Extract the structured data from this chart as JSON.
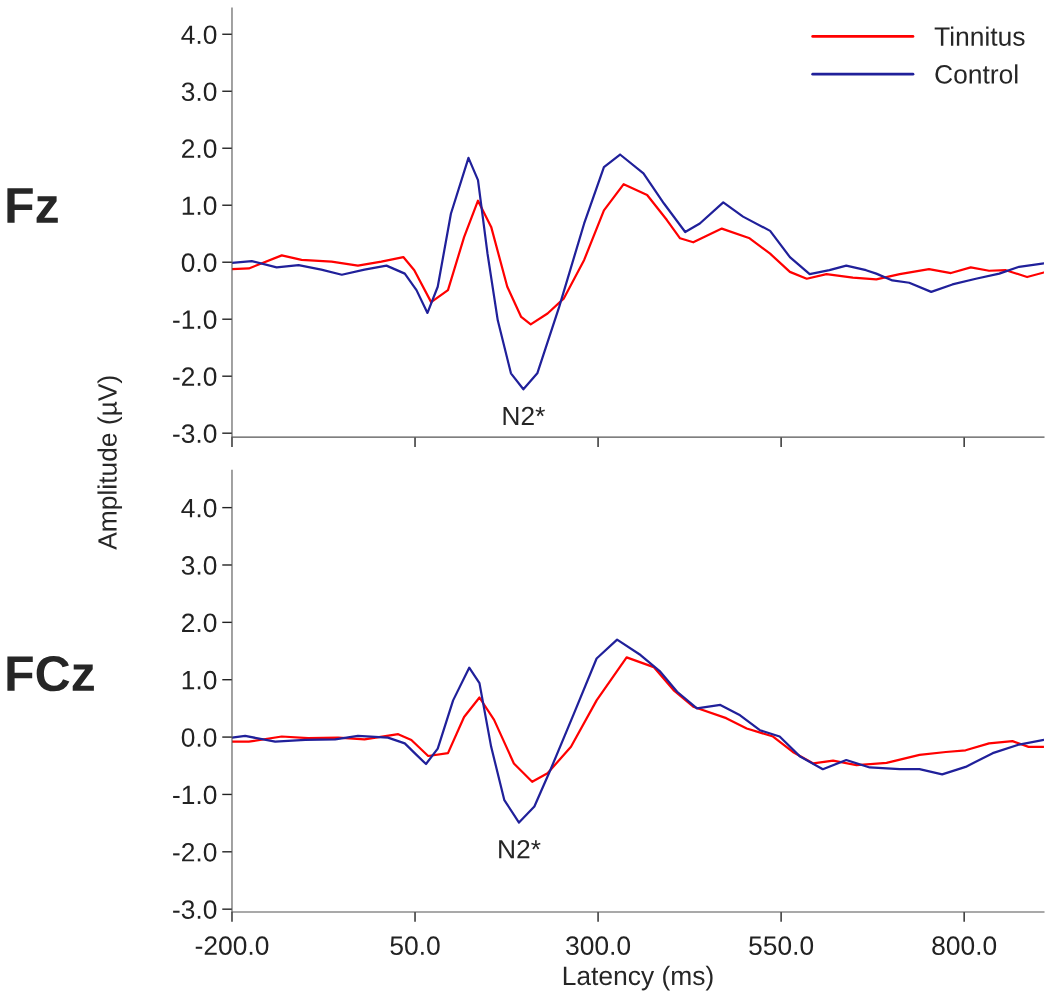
{
  "chart_data": [
    {
      "type": "line",
      "title": "Fz",
      "ylabel": "Amplitude (µV)",
      "xlim": [
        -200,
        909
      ],
      "ylim": [
        -3.07,
        4.46
      ],
      "xticks": [
        {
          "value": -200,
          "label": null
        },
        {
          "value": 50,
          "label": null
        },
        {
          "value": 300,
          "label": null
        },
        {
          "value": 550,
          "label": null
        },
        {
          "value": 800,
          "label": null
        }
      ],
      "yticks": [
        {
          "value": -3,
          "label": "-3.0"
        },
        {
          "value": -2,
          "label": "-2.0"
        },
        {
          "value": -1,
          "label": "-1.0"
        },
        {
          "value": 0,
          "label": "0.0"
        },
        {
          "value": 1,
          "label": "1.0"
        },
        {
          "value": 2,
          "label": "2.0"
        },
        {
          "value": 3,
          "label": "3.0"
        },
        {
          "value": 4,
          "label": "4.0"
        }
      ],
      "tick_labels": "y",
      "grid": false,
      "legend": "top right",
      "line_style": "solid",
      "marker": "none",
      "annotations": [
        {
          "text": "N2*",
          "x": 198,
          "y": -2.23
        }
      ],
      "series": [
        {
          "name": "Tinnitus",
          "color": "#ff0000",
          "x": [
            -200,
            -177,
            -132,
            -105,
            -64,
            -28,
            4,
            34,
            49,
            72,
            95,
            117,
            136,
            154,
            176,
            195,
            208,
            231,
            253,
            281,
            308,
            335,
            367,
            394,
            412,
            430,
            469,
            507,
            535,
            562,
            585,
            612,
            648,
            680,
            712,
            752,
            782,
            809,
            834,
            857,
            886,
            909
          ],
          "values": [
            -0.12,
            -0.11,
            0.12,
            0.04,
            0.01,
            -0.06,
            0.01,
            0.09,
            -0.14,
            -0.7,
            -0.49,
            0.44,
            1.08,
            0.62,
            -0.43,
            -0.96,
            -1.09,
            -0.9,
            -0.64,
            0.04,
            0.91,
            1.37,
            1.18,
            0.74,
            0.42,
            0.35,
            0.59,
            0.42,
            0.15,
            -0.17,
            -0.29,
            -0.21,
            -0.27,
            -0.3,
            -0.21,
            -0.12,
            -0.19,
            -0.09,
            -0.15,
            -0.14,
            -0.26,
            -0.18
          ]
        },
        {
          "name": "Control",
          "color": "#20209a",
          "x": [
            -200,
            -173,
            -139,
            -109,
            -78,
            -50,
            -19,
            11,
            36,
            52,
            67,
            81,
            99,
            123,
            136,
            149,
            163,
            181,
            198,
            217,
            247,
            281,
            308,
            330,
            362,
            390,
            419,
            439,
            471,
            498,
            535,
            562,
            589,
            616,
            639,
            666,
            680,
            702,
            725,
            755,
            784,
            816,
            848,
            875,
            909
          ],
          "values": [
            -0.01,
            0.02,
            -0.09,
            -0.05,
            -0.13,
            -0.22,
            -0.13,
            -0.06,
            -0.2,
            -0.49,
            -0.89,
            -0.43,
            0.85,
            1.83,
            1.44,
            0.15,
            -1.02,
            -1.95,
            -2.23,
            -1.95,
            -0.78,
            0.68,
            1.67,
            1.89,
            1.56,
            1.03,
            0.53,
            0.68,
            1.05,
            0.8,
            0.55,
            0.09,
            -0.21,
            -0.14,
            -0.06,
            -0.14,
            -0.2,
            -0.32,
            -0.36,
            -0.52,
            -0.39,
            -0.29,
            -0.2,
            -0.08,
            -0.02
          ]
        }
      ]
    },
    {
      "type": "line",
      "title": "FCz",
      "xlabel": "Latency (ms)",
      "xlim": [
        -200,
        909
      ],
      "ylim": [
        -3.05,
        4.65
      ],
      "xticks": [
        {
          "value": -200,
          "label": "-200.0"
        },
        {
          "value": 50,
          "label": "50.0"
        },
        {
          "value": 300,
          "label": "300.0"
        },
        {
          "value": 550,
          "label": "550.0"
        },
        {
          "value": 800,
          "label": "800.0"
        }
      ],
      "yticks": [
        {
          "value": -3,
          "label": "-3.0"
        },
        {
          "value": -2,
          "label": "-2.0"
        },
        {
          "value": -1,
          "label": "-1.0"
        },
        {
          "value": 0,
          "label": "0.0"
        },
        {
          "value": 1,
          "label": "1.0"
        },
        {
          "value": 2,
          "label": "2.0"
        },
        {
          "value": 3,
          "label": "3.0"
        },
        {
          "value": 4,
          "label": "4.0"
        }
      ],
      "grid": false,
      "line_style": "solid",
      "marker": "none",
      "annotations": [
        {
          "text": "N2*",
          "x": 192,
          "y": -1.49
        }
      ],
      "series": [
        {
          "color": "#ff0000",
          "x": [
            -200,
            -177,
            -132,
            -96,
            -55,
            -19,
            27,
            45,
            68,
            95,
            117,
            138,
            158,
            185,
            210,
            231,
            263,
            298,
            339,
            376,
            403,
            430,
            475,
            503,
            539,
            566,
            594,
            621,
            653,
            694,
            739,
            775,
            802,
            834,
            866,
            888,
            909
          ],
          "values": [
            -0.08,
            -0.08,
            0.01,
            -0.02,
            -0.01,
            -0.04,
            0.05,
            -0.05,
            -0.33,
            -0.28,
            0.35,
            0.69,
            0.3,
            -0.46,
            -0.78,
            -0.63,
            -0.17,
            0.64,
            1.39,
            1.22,
            0.82,
            0.53,
            0.33,
            0.15,
            0.01,
            -0.26,
            -0.46,
            -0.41,
            -0.49,
            -0.45,
            -0.31,
            -0.26,
            -0.23,
            -0.11,
            -0.07,
            -0.17,
            -0.17
          ]
        },
        {
          "color": "#20209a",
          "x": [
            -200,
            -182,
            -141,
            -100,
            -59,
            -28,
            13,
            36,
            52,
            65,
            81,
            102,
            124,
            138,
            154,
            172,
            192,
            213,
            235,
            267,
            298,
            326,
            358,
            385,
            408,
            435,
            467,
            494,
            521,
            548,
            576,
            607,
            639,
            671,
            712,
            739,
            770,
            802,
            839,
            875,
            909
          ],
          "values": [
            -0.01,
            0.02,
            -0.08,
            -0.05,
            -0.04,
            0.02,
            -0.01,
            -0.11,
            -0.31,
            -0.47,
            -0.2,
            0.64,
            1.21,
            0.94,
            -0.17,
            -1.1,
            -1.49,
            -1.21,
            -0.57,
            0.41,
            1.37,
            1.7,
            1.43,
            1.14,
            0.79,
            0.5,
            0.56,
            0.38,
            0.12,
            0.01,
            -0.34,
            -0.56,
            -0.4,
            -0.53,
            -0.56,
            -0.56,
            -0.65,
            -0.52,
            -0.28,
            -0.13,
            -0.05
          ]
        }
      ]
    }
  ]
}
